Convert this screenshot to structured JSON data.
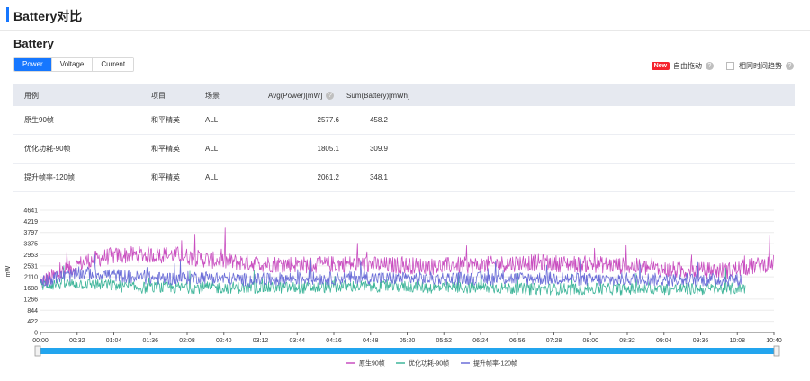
{
  "header": {
    "title": "Battery对比"
  },
  "section": {
    "title": "Battery"
  },
  "tabs": [
    {
      "label": "Power",
      "active": true
    },
    {
      "label": "Voltage",
      "active": false
    },
    {
      "label": "Current",
      "active": false
    }
  ],
  "options": {
    "new_badge": "New",
    "free_drag_label": "自由拖动",
    "same_time_trend_label": "相同时间趋势",
    "same_time_trend_checked": false
  },
  "table": {
    "headers": [
      "用例",
      "项目",
      "场景",
      "Avg(Power)[mW]",
      "Sum(Battery)[mWh]"
    ],
    "rows": [
      [
        "原生90帧",
        "和平精英",
        "ALL",
        "2577.6",
        "458.2"
      ],
      [
        "优化功耗-90帧",
        "和平精英",
        "ALL",
        "1805.1",
        "309.9"
      ],
      [
        "提升帧率-120帧",
        "和平精英",
        "ALL",
        "2061.2",
        "348.1"
      ]
    ]
  },
  "chart_data": {
    "type": "line",
    "ylabel": "mW",
    "ylim": [
      0,
      4641
    ],
    "y_ticks": [
      "4641",
      "4219",
      "3797",
      "3375",
      "2953",
      "2531",
      "2110",
      "1688",
      "1266",
      "844",
      "422",
      "0"
    ],
    "x_ticks": [
      "00:00",
      "00:32",
      "01:04",
      "01:36",
      "02:08",
      "02:40",
      "03:12",
      "03:44",
      "04:16",
      "04:48",
      "05:20",
      "05:52",
      "06:24",
      "06:56",
      "07:28",
      "08:00",
      "08:32",
      "09:04",
      "09:36",
      "10:08",
      "10:40"
    ],
    "x_range_seconds": [
      0,
      640
    ],
    "series": [
      {
        "name": "原生90帧",
        "color": "#c94fc0",
        "end_seconds": 640,
        "avg_points": [
          [
            0,
            1900
          ],
          [
            20,
            2300
          ],
          [
            40,
            2700
          ],
          [
            60,
            2900
          ],
          [
            80,
            2950
          ],
          [
            100,
            2950
          ],
          [
            120,
            2950
          ],
          [
            140,
            2800
          ],
          [
            160,
            2700
          ],
          [
            180,
            2650
          ],
          [
            200,
            2600
          ],
          [
            220,
            2600
          ],
          [
            240,
            2550
          ],
          [
            260,
            2600
          ],
          [
            280,
            2600
          ],
          [
            300,
            2550
          ],
          [
            320,
            2550
          ],
          [
            340,
            2500
          ],
          [
            360,
            2550
          ],
          [
            380,
            2550
          ],
          [
            400,
            2600
          ],
          [
            420,
            2650
          ],
          [
            440,
            2650
          ],
          [
            460,
            2600
          ],
          [
            480,
            2600
          ],
          [
            500,
            2550
          ],
          [
            520,
            2500
          ],
          [
            540,
            2400
          ],
          [
            560,
            2350
          ],
          [
            580,
            2350
          ],
          [
            600,
            2350
          ],
          [
            620,
            2500
          ],
          [
            640,
            2650
          ]
        ]
      },
      {
        "name": "优化功耗-90帧",
        "color": "#3fb59a",
        "end_seconds": 615,
        "avg_points": [
          [
            0,
            1800
          ],
          [
            20,
            1850
          ],
          [
            40,
            1850
          ],
          [
            60,
            1800
          ],
          [
            80,
            1700
          ],
          [
            100,
            1700
          ],
          [
            120,
            1700
          ],
          [
            140,
            1700
          ],
          [
            160,
            1700
          ],
          [
            180,
            1700
          ],
          [
            200,
            1700
          ],
          [
            220,
            1700
          ],
          [
            240,
            1700
          ],
          [
            260,
            1750
          ],
          [
            280,
            1750
          ],
          [
            300,
            1750
          ],
          [
            320,
            1750
          ],
          [
            340,
            1700
          ],
          [
            360,
            1700
          ],
          [
            380,
            1700
          ],
          [
            400,
            1700
          ],
          [
            420,
            1650
          ],
          [
            440,
            1650
          ],
          [
            460,
            1650
          ],
          [
            480,
            1650
          ],
          [
            500,
            1650
          ],
          [
            520,
            1650
          ],
          [
            540,
            1650
          ],
          [
            560,
            1650
          ],
          [
            580,
            1650
          ],
          [
            600,
            1650
          ],
          [
            615,
            1700
          ]
        ]
      },
      {
        "name": "提升帧率-120帧",
        "color": "#6b6ed8",
        "end_seconds": 612,
        "avg_points": [
          [
            0,
            1950
          ],
          [
            20,
            2150
          ],
          [
            40,
            2250
          ],
          [
            60,
            2200
          ],
          [
            80,
            2100
          ],
          [
            100,
            2050
          ],
          [
            120,
            2050
          ],
          [
            140,
            2100
          ],
          [
            160,
            2050
          ],
          [
            180,
            2000
          ],
          [
            200,
            2000
          ],
          [
            220,
            2050
          ],
          [
            240,
            2050
          ],
          [
            260,
            2050
          ],
          [
            280,
            2100
          ],
          [
            300,
            2050
          ],
          [
            320,
            2050
          ],
          [
            340,
            2050
          ],
          [
            360,
            2050
          ],
          [
            380,
            2050
          ],
          [
            400,
            2050
          ],
          [
            420,
            2050
          ],
          [
            440,
            2050
          ],
          [
            460,
            2050
          ],
          [
            480,
            2000
          ],
          [
            500,
            2000
          ],
          [
            520,
            2050
          ],
          [
            540,
            2000
          ],
          [
            560,
            2000
          ],
          [
            580,
            2000
          ],
          [
            600,
            2000
          ],
          [
            612,
            2000
          ]
        ]
      }
    ],
    "legend_position": "bottom-center",
    "has_zoom_slider": true,
    "accent_color": "#1677ff",
    "slider_color": "#23a5ee"
  }
}
